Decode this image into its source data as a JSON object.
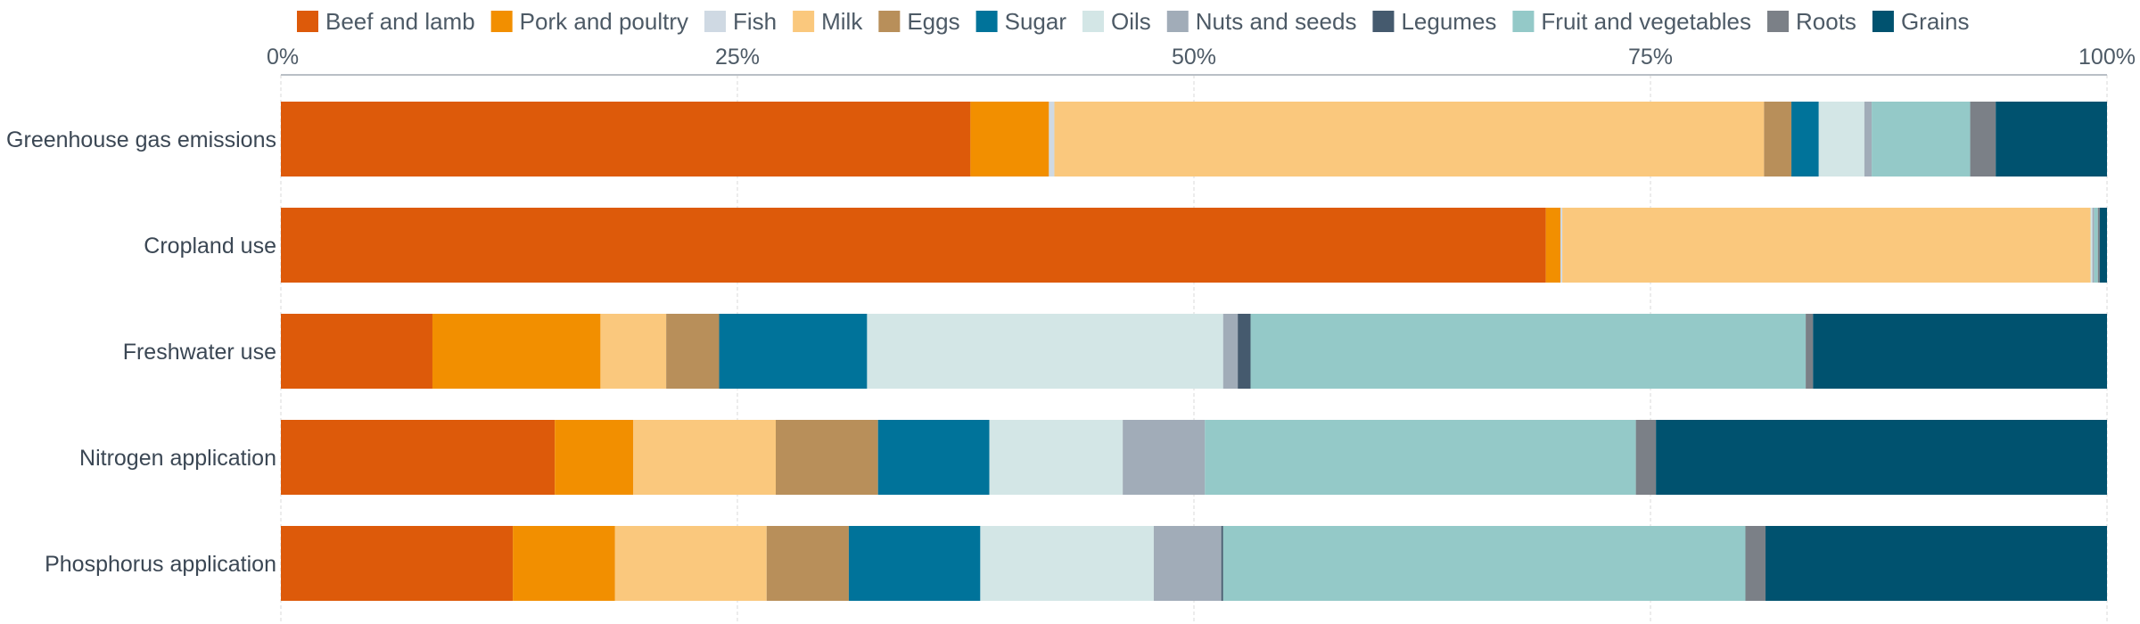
{
  "chart_data": {
    "type": "bar",
    "orientation": "horizontal",
    "stacked": "percent",
    "title": "",
    "xlabel": "",
    "ylabel": "",
    "xlim": [
      0,
      100
    ],
    "x_ticks": [
      "0%",
      "25%",
      "50%",
      "75%",
      "100%"
    ],
    "x_tick_values": [
      0,
      25,
      50,
      75,
      100
    ],
    "x_axis_position": "top",
    "legend_position": "top",
    "grid": true,
    "categories": [
      "Greenhouse gas emissions",
      "Cropland use",
      "Freshwater use",
      "Nitrogen application",
      "Phosphorus application"
    ],
    "series": [
      {
        "name": "Beef and lamb",
        "color": "#dd5a0a",
        "values": [
          37.8,
          69.2,
          8.3,
          15.0,
          12.7
        ]
      },
      {
        "name": "Pork and poultry",
        "color": "#f28f00",
        "values": [
          4.3,
          0.8,
          9.2,
          4.3,
          5.6
        ]
      },
      {
        "name": "Fish",
        "color": "#cfd9e3",
        "values": [
          0.3,
          0.1,
          0.0,
          0.0,
          0.0
        ]
      },
      {
        "name": "Milk",
        "color": "#fac87d",
        "values": [
          38.9,
          28.9,
          3.6,
          7.8,
          8.3
        ]
      },
      {
        "name": "Eggs",
        "color": "#b88f5a",
        "values": [
          1.5,
          0.0,
          2.9,
          5.6,
          4.5
        ]
      },
      {
        "name": "Sugar",
        "color": "#00739a",
        "values": [
          1.5,
          0.0,
          8.1,
          6.1,
          7.2
        ]
      },
      {
        "name": "Oils",
        "color": "#d3e6e6",
        "values": [
          2.5,
          0.1,
          19.5,
          7.3,
          9.5
        ]
      },
      {
        "name": "Nuts and seeds",
        "color": "#a1acb8",
        "values": [
          0.4,
          0.1,
          0.8,
          4.5,
          3.7
        ]
      },
      {
        "name": "Legumes",
        "color": "#455a6e",
        "values": [
          0.0,
          0.0,
          0.7,
          0.0,
          0.1
        ]
      },
      {
        "name": "Fruit and vegetables",
        "color": "#94c9c8",
        "values": [
          5.4,
          0.2,
          30.4,
          23.6,
          28.6
        ]
      },
      {
        "name": "Roots",
        "color": "#7b8087",
        "values": [
          1.4,
          0.1,
          0.4,
          1.1,
          1.1
        ]
      },
      {
        "name": "Grains",
        "color": "#00526f",
        "values": [
          6.1,
          0.4,
          16.1,
          24.7,
          18.7
        ]
      }
    ]
  }
}
